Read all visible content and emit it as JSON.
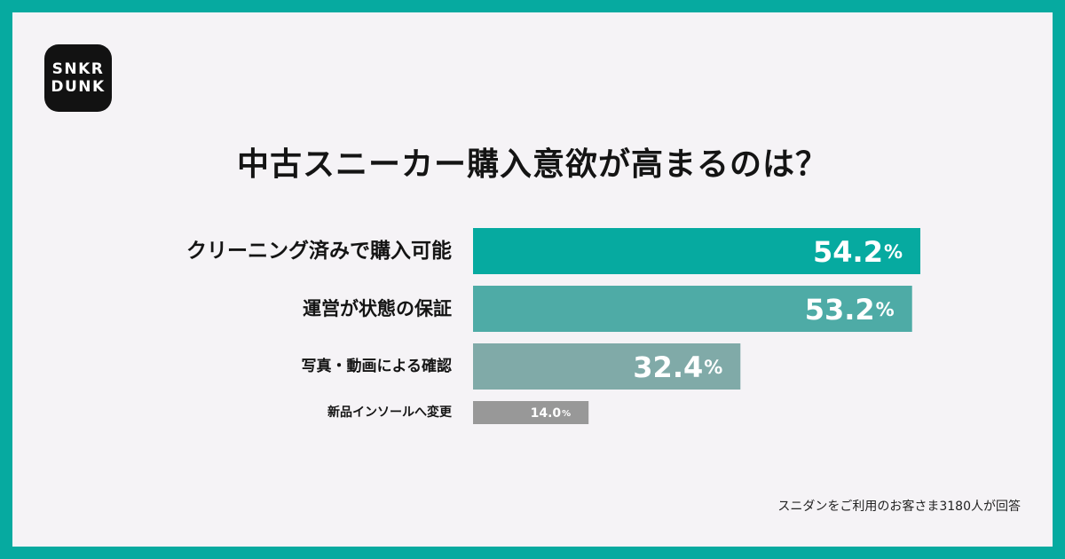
{
  "brand": {
    "logo_line1": "SNKR",
    "logo_line2": "DUNK"
  },
  "chart_data": {
    "type": "bar",
    "orientation": "horizontal",
    "title": "中古スニーカー購入意欲が高まるのは？",
    "unit": "%",
    "categories": [
      "クリーニング済みで購入可能",
      "運営が状態の保証",
      "写真・動画による確認",
      "新品インソールへ変更"
    ],
    "values": [
      54.2,
      53.2,
      32.4,
      14.0
    ],
    "value_labels": [
      "54.2",
      "53.2",
      "32.4",
      "14.0"
    ],
    "colors": [
      "#06aaa0",
      "#4eaba6",
      "#80aaa8",
      "#989898"
    ],
    "grid": false,
    "legend": "none"
  },
  "footer": {
    "note": "スニダンをご利用のお客さま3180人が回答"
  }
}
